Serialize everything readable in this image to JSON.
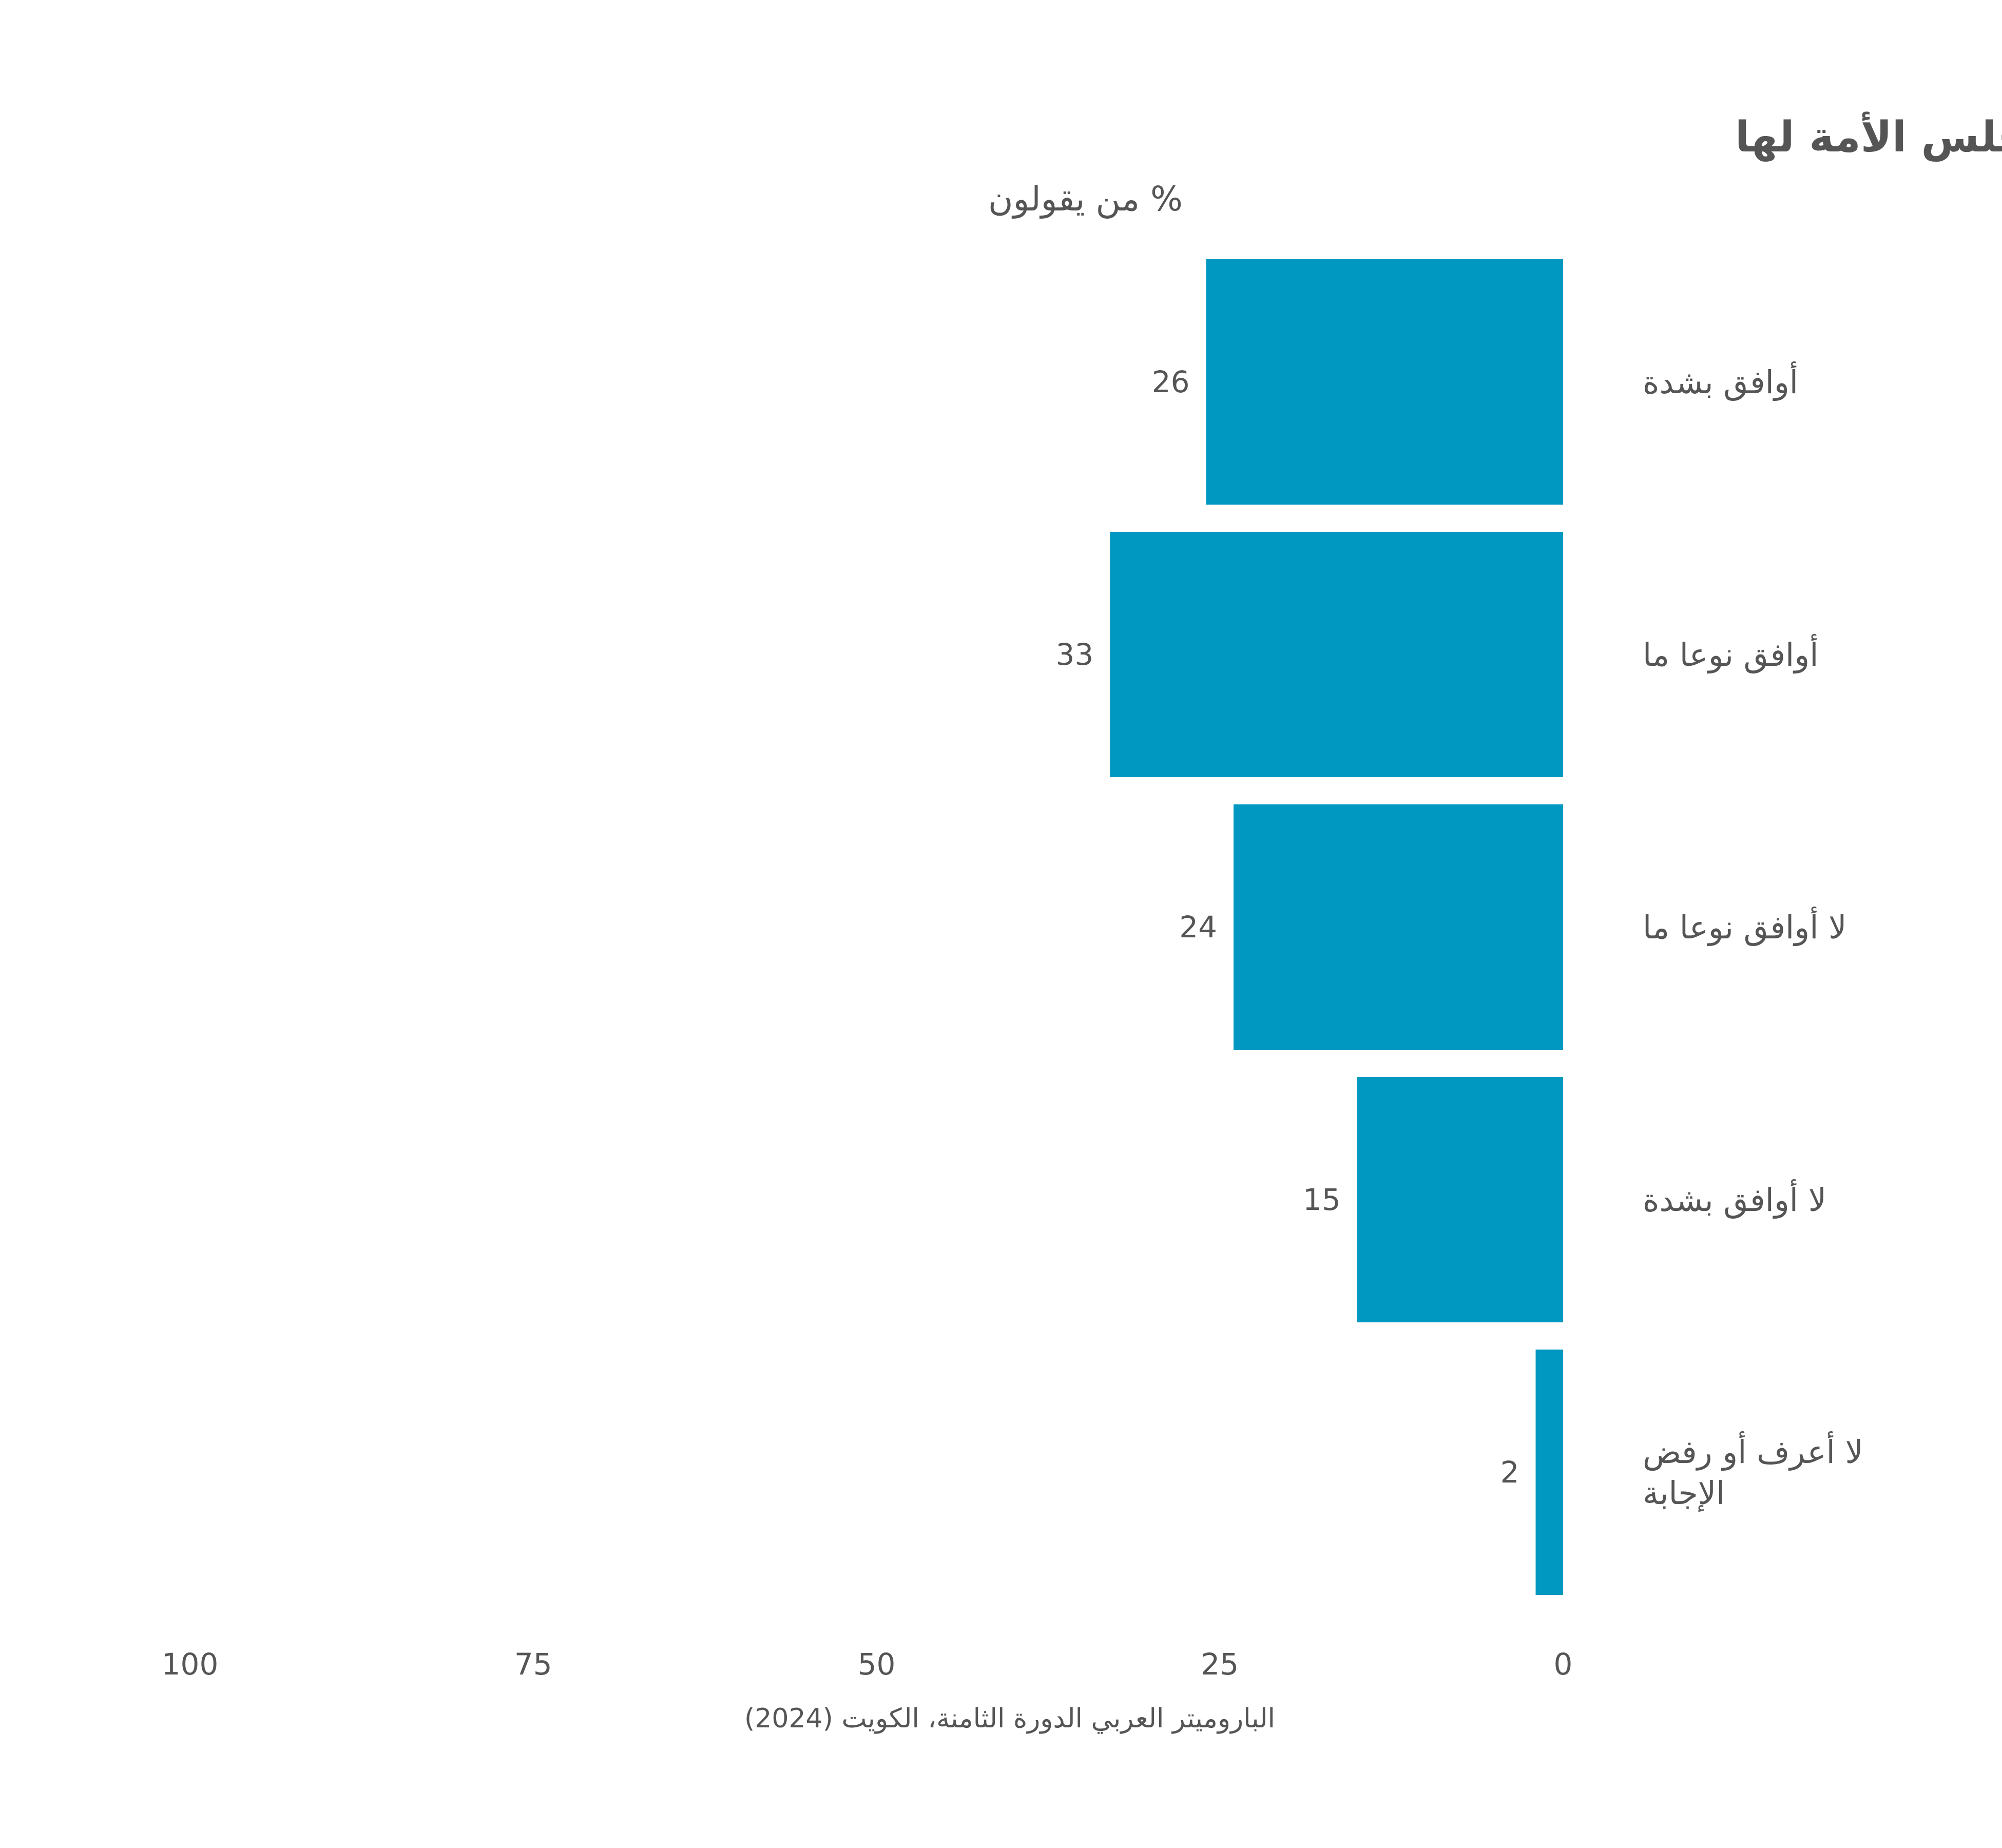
{
  "chart_data": {
    "type": "bar",
    "orientation": "horizontal",
    "direction": "right-to-left",
    "title": "كان يمكن للحكومة أن تقوم بأعمال مؤثرة في تقدم الدولة لولا تعطيل مجلس الأمة لها",
    "subtitle": "% من يقولون",
    "categories": [
      "أوافق بشدة",
      "أوافق نوعا ما",
      "لا أوافق نوعا ما",
      "لا أوافق بشدة",
      "لا أعرف أو رفض الإجابة"
    ],
    "category_lines": [
      [
        "أوافق بشدة"
      ],
      [
        "أوافق نوعا ما"
      ],
      [
        "لا أوافق نوعا ما"
      ],
      [
        "لا أوافق بشدة"
      ],
      [
        "لا أعرف أو رفض",
        "الإجابة"
      ]
    ],
    "values": [
      26,
      33,
      24,
      15,
      2
    ],
    "xlim": [
      0,
      100
    ],
    "ticks": [
      100,
      75,
      50,
      25,
      0
    ],
    "tick_labels": [
      "100",
      "75",
      "50",
      "25",
      "0"
    ],
    "bar_color": "#0097C0",
    "text_color": "#555555",
    "grid": false,
    "legend": "none",
    "source": "الباروميتر العربي الدورة الثامنة، الكويت (2024)"
  }
}
